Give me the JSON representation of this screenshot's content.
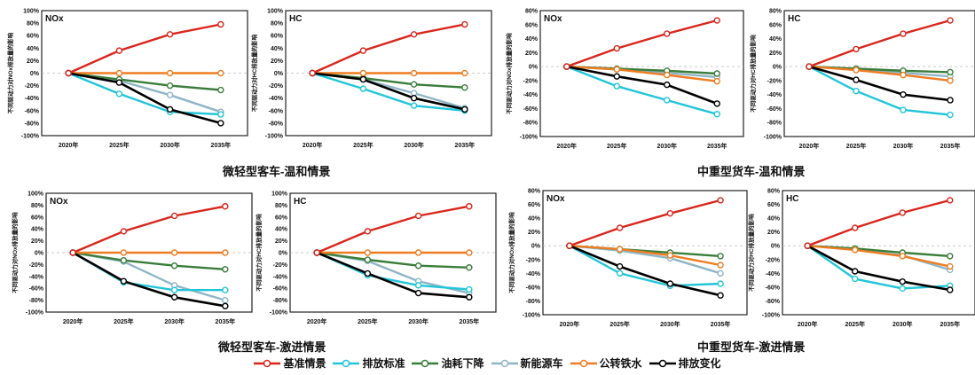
{
  "years": [
    "2020年",
    "2025年",
    "2030年",
    "2035年"
  ],
  "legend": [
    {
      "key": "baseline",
      "label": "基准情景",
      "color": "#d9261c"
    },
    {
      "key": "emission_std",
      "label": "排放标准",
      "color": "#22c5d8"
    },
    {
      "key": "fuel_cut",
      "label": "油耗下降",
      "color": "#3a7d3a"
    },
    {
      "key": "nev",
      "label": "新能源车",
      "color": "#8fb5c6"
    },
    {
      "key": "rail",
      "label": "公转铁水",
      "color": "#ee7d22"
    },
    {
      "key": "total",
      "label": "排放变化",
      "color": "#000000"
    }
  ],
  "captions": {
    "top_left": "微轻型客车-温和情景",
    "top_right": "中重型货车-温和情景",
    "bottom_left": "微轻型客车-激进情景",
    "bottom_right": "中重型货车-激进情景"
  },
  "chart_data": [
    {
      "type": "line",
      "title": "NOx",
      "ylabel": "不同驱动力对NOx排放量的影响",
      "ylim": [
        -100,
        100
      ],
      "yticks": [
        100,
        80,
        60,
        40,
        20,
        0,
        -20,
        -40,
        -60,
        -80,
        -100
      ],
      "categories": [
        "2020年",
        "2025年",
        "2030年",
        "2035年"
      ],
      "series": [
        {
          "name": "基准情景",
          "values": [
            0,
            36,
            62,
            78
          ]
        },
        {
          "name": "排放标准",
          "values": [
            0,
            -33,
            -62,
            -66
          ]
        },
        {
          "name": "油耗下降",
          "values": [
            0,
            -10,
            -20,
            -27
          ]
        },
        {
          "name": "新能源车",
          "values": [
            0,
            -12,
            -35,
            -62
          ]
        },
        {
          "name": "公转铁水",
          "values": [
            0,
            0,
            0,
            0
          ]
        },
        {
          "name": "排放变化",
          "values": [
            0,
            -15,
            -58,
            -80
          ]
        }
      ]
    },
    {
      "type": "line",
      "title": "HC",
      "ylabel": "不同驱动力对HC排放量的影响",
      "ylim": [
        -100,
        100
      ],
      "yticks": [
        100,
        80,
        60,
        40,
        20,
        0,
        -20,
        -40,
        -60,
        -80,
        -100
      ],
      "categories": [
        "2020年",
        "2025年",
        "2030年",
        "2035年"
      ],
      "series": [
        {
          "name": "基准情景",
          "values": [
            0,
            36,
            62,
            78
          ]
        },
        {
          "name": "排放标准",
          "values": [
            0,
            -25,
            -52,
            -60
          ]
        },
        {
          "name": "油耗下降",
          "values": [
            0,
            -8,
            -18,
            -23
          ]
        },
        {
          "name": "新能源车",
          "values": [
            0,
            -10,
            -32,
            -56
          ]
        },
        {
          "name": "公转铁水",
          "values": [
            0,
            0,
            0,
            0
          ]
        },
        {
          "name": "排放变化",
          "values": [
            0,
            -10,
            -40,
            -58
          ]
        }
      ]
    },
    {
      "type": "line",
      "title": "NOx",
      "ylabel": "不同驱动力对NOx排放量的影响",
      "ylim": [
        -100,
        80
      ],
      "yticks": [
        80,
        60,
        40,
        20,
        0,
        -20,
        -40,
        -60,
        -80,
        -100
      ],
      "categories": [
        "2020年",
        "2025年",
        "2030年",
        "2035年"
      ],
      "series": [
        {
          "name": "基准情景",
          "values": [
            0,
            26,
            47,
            66
          ]
        },
        {
          "name": "排放标准",
          "values": [
            0,
            -28,
            -48,
            -68
          ]
        },
        {
          "name": "油耗下降",
          "values": [
            0,
            -3,
            -6,
            -10
          ]
        },
        {
          "name": "新能源车",
          "values": [
            0,
            -4,
            -9,
            -15
          ]
        },
        {
          "name": "公转铁水",
          "values": [
            0,
            -4,
            -12,
            -21
          ]
        },
        {
          "name": "排放变化",
          "values": [
            0,
            -14,
            -26,
            -53
          ]
        }
      ]
    },
    {
      "type": "line",
      "title": "HC",
      "ylabel": "不同驱动力对HC排放量的影响",
      "ylim": [
        -100,
        80
      ],
      "yticks": [
        80,
        60,
        40,
        20,
        0,
        -20,
        -40,
        -60,
        -80,
        -100
      ],
      "categories": [
        "2020年",
        "2025年",
        "2030年",
        "2035年"
      ],
      "series": [
        {
          "name": "基准情景",
          "values": [
            0,
            25,
            47,
            66
          ]
        },
        {
          "name": "排放标准",
          "values": [
            0,
            -35,
            -62,
            -69
          ]
        },
        {
          "name": "油耗下降",
          "values": [
            0,
            -3,
            -6,
            -8
          ]
        },
        {
          "name": "新能源车",
          "values": [
            0,
            -4,
            -9,
            -14
          ]
        },
        {
          "name": "公转铁水",
          "values": [
            0,
            -5,
            -12,
            -20
          ]
        },
        {
          "name": "排放变化",
          "values": [
            0,
            -19,
            -40,
            -48
          ]
        }
      ]
    },
    {
      "type": "line",
      "title": "NOx",
      "ylabel": "不同驱动力对NOx排放量的影响",
      "ylim": [
        -100,
        100
      ],
      "yticks": [
        100,
        80,
        60,
        40,
        20,
        0,
        -20,
        -40,
        -60,
        -80,
        -100
      ],
      "categories": [
        "2020年",
        "2025年",
        "2030年",
        "2035年"
      ],
      "series": [
        {
          "name": "基准情景",
          "values": [
            0,
            36,
            62,
            78
          ]
        },
        {
          "name": "排放标准",
          "values": [
            0,
            -50,
            -63,
            -63
          ]
        },
        {
          "name": "油耗下降",
          "values": [
            0,
            -13,
            -22,
            -28
          ]
        },
        {
          "name": "新能源车",
          "values": [
            0,
            -15,
            -55,
            -80
          ]
        },
        {
          "name": "公转铁水",
          "values": [
            0,
            0,
            0,
            0
          ]
        },
        {
          "name": "排放变化",
          "values": [
            0,
            -48,
            -75,
            -90
          ]
        }
      ]
    },
    {
      "type": "line",
      "title": "HC",
      "ylabel": "不同驱动力对HC排放量的影响",
      "ylim": [
        -100,
        100
      ],
      "yticks": [
        100,
        80,
        60,
        40,
        20,
        0,
        -20,
        -40,
        -60,
        -80,
        -100
      ],
      "categories": [
        "2020年",
        "2025年",
        "2030年",
        "2035年"
      ],
      "series": [
        {
          "name": "基准情景",
          "values": [
            0,
            36,
            62,
            78
          ]
        },
        {
          "name": "排放标准",
          "values": [
            0,
            -38,
            -55,
            -62
          ]
        },
        {
          "name": "油耗下降",
          "values": [
            0,
            -12,
            -22,
            -25
          ]
        },
        {
          "name": "新能源车",
          "values": [
            0,
            -14,
            -48,
            -68
          ]
        },
        {
          "name": "公转铁水",
          "values": [
            0,
            0,
            0,
            0
          ]
        },
        {
          "name": "排放变化",
          "values": [
            0,
            -35,
            -68,
            -75
          ]
        }
      ]
    },
    {
      "type": "line",
      "title": "NOx",
      "ylabel": "不同驱动力对NOx排放量的影响",
      "ylim": [
        -100,
        80
      ],
      "yticks": [
        80,
        60,
        40,
        20,
        0,
        -20,
        -40,
        -60,
        -80,
        -100
      ],
      "categories": [
        "2020年",
        "2025年",
        "2030年",
        "2035年"
      ],
      "series": [
        {
          "name": "基准情景",
          "values": [
            0,
            26,
            47,
            66
          ]
        },
        {
          "name": "排放标准",
          "values": [
            0,
            -40,
            -58,
            -55
          ]
        },
        {
          "name": "油耗下降",
          "values": [
            0,
            -5,
            -10,
            -15
          ]
        },
        {
          "name": "新能源车",
          "values": [
            0,
            -7,
            -18,
            -40
          ]
        },
        {
          "name": "公转铁水",
          "values": [
            0,
            -5,
            -14,
            -28
          ]
        },
        {
          "name": "排放变化",
          "values": [
            0,
            -30,
            -55,
            -72
          ]
        }
      ]
    },
    {
      "type": "line",
      "title": "HC",
      "ylabel": "不同驱动力对HC排放量的影响",
      "ylim": [
        -100,
        80
      ],
      "yticks": [
        80,
        60,
        40,
        20,
        0,
        -20,
        -40,
        -60,
        -80,
        -100
      ],
      "categories": [
        "2020年",
        "2025年",
        "2030年",
        "2035年"
      ],
      "series": [
        {
          "name": "基准情景",
          "values": [
            0,
            26,
            48,
            66
          ]
        },
        {
          "name": "排放标准",
          "values": [
            0,
            -48,
            -62,
            -58
          ]
        },
        {
          "name": "油耗下降",
          "values": [
            0,
            -4,
            -10,
            -15
          ]
        },
        {
          "name": "新能源车",
          "values": [
            0,
            -5,
            -14,
            -35
          ]
        },
        {
          "name": "公转铁水",
          "values": [
            0,
            -6,
            -15,
            -30
          ]
        },
        {
          "name": "排放变化",
          "values": [
            0,
            -37,
            -52,
            -64
          ]
        }
      ]
    }
  ]
}
